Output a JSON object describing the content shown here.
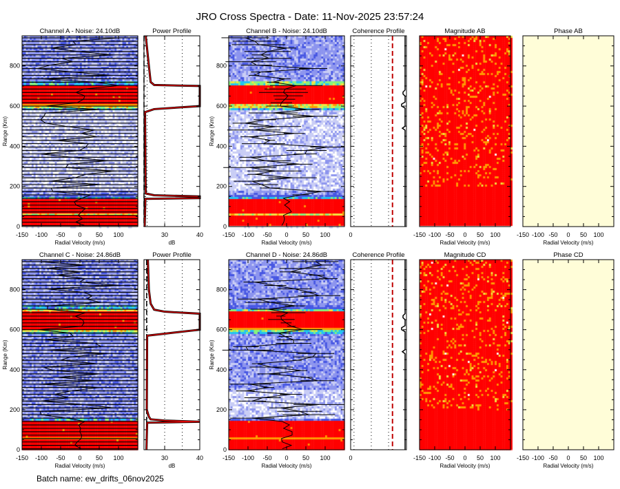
{
  "title": "JRO Cross Spectra - Date: 11-Nov-2025 23:57:24",
  "batch_name": "Batch name: ew_drifts_06nov2025",
  "colors": {
    "profile_line": "#e00000",
    "threshold_line": "#c00000",
    "phase_fill": "#fffdd8",
    "saturated": "#ff0000"
  },
  "colormap": [
    "#ffffff",
    "#c9cdf5",
    "#8c94ee",
    "#4656e2",
    "#22c4f2",
    "#86f27c",
    "#f2e640",
    "#ff9a00",
    "#ff0000"
  ],
  "chart_data": [
    {
      "id": "specA",
      "type": "heatmap",
      "title": "Channel A - Noise: 24.10dB",
      "xlabel": "Radial Velocity (m/s)",
      "ylabel": "Range (Km)",
      "xlim": [
        -150,
        150
      ],
      "ylim": [
        0,
        950
      ],
      "xticks": [
        "-150",
        "-100",
        "-50",
        "0",
        "50",
        "100"
      ],
      "yticks": [
        "0",
        "200",
        "400",
        "600",
        "800"
      ],
      "bands": [
        [
          0,
          55,
          8
        ],
        [
          55,
          65,
          6
        ],
        [
          65,
          140,
          8
        ],
        [
          140,
          148,
          4
        ],
        [
          148,
          158,
          3
        ],
        [
          158,
          175,
          2
        ],
        [
          175,
          580,
          1
        ],
        [
          580,
          592,
          4
        ],
        [
          592,
          600,
          6
        ],
        [
          600,
          610,
          7
        ],
        [
          610,
          700,
          8
        ],
        [
          700,
          708,
          6
        ],
        [
          708,
          725,
          4
        ],
        [
          725,
          950,
          2
        ]
      ]
    },
    {
      "id": "powA",
      "type": "line",
      "title": "Power Profile",
      "xlabel": "dB",
      "xlim": [
        24.1,
        40
      ],
      "ylim": [
        0,
        950
      ],
      "xticks": [
        "30",
        "40"
      ],
      "noise_db": 24.1,
      "profile": [
        [
          0,
          24.3
        ],
        [
          138,
          24.5
        ],
        [
          142,
          40
        ],
        [
          150,
          40
        ],
        [
          156,
          27
        ],
        [
          165,
          24.6
        ],
        [
          570,
          24.4
        ],
        [
          585,
          27
        ],
        [
          600,
          40
        ],
        [
          700,
          40
        ],
        [
          705,
          27
        ],
        [
          720,
          26
        ],
        [
          800,
          25.5
        ],
        [
          950,
          24.6
        ]
      ]
    },
    {
      "id": "specB",
      "type": "heatmap",
      "title": "Channel B - Noise: 24.10dB",
      "xlabel": "Radial Velocity (m/s)",
      "ylabel": "Range (Km)",
      "xlim": [
        -150,
        150
      ],
      "ylim": [
        0,
        950
      ],
      "xticks": [
        "-150",
        "-100",
        "-50",
        "0",
        "50",
        "100"
      ],
      "yticks": [
        "0",
        "200",
        "400",
        "600",
        "800"
      ],
      "bands": [
        [
          0,
          50,
          8
        ],
        [
          50,
          62,
          6
        ],
        [
          62,
          140,
          8
        ],
        [
          140,
          150,
          4
        ],
        [
          150,
          160,
          3
        ],
        [
          160,
          180,
          2
        ],
        [
          180,
          580,
          1
        ],
        [
          580,
          594,
          4
        ],
        [
          594,
          606,
          6
        ],
        [
          606,
          700,
          8
        ],
        [
          700,
          720,
          5
        ],
        [
          720,
          950,
          2
        ]
      ]
    },
    {
      "id": "cohAB",
      "type": "line",
      "title": "Coherence Profile",
      "xticks": [
        "0"
      ],
      "ylim": [
        0,
        950
      ]
    },
    {
      "id": "magAB",
      "type": "heatmap",
      "title": "Magnitude AB",
      "xlabel": "Radial Velocity (m/s)",
      "xlim": [
        -150,
        150
      ],
      "ylim": [
        0,
        950
      ],
      "xticks": [
        "-150",
        "-100",
        "-50",
        "0",
        "50",
        "100"
      ],
      "bands": [
        [
          0,
          950,
          8
        ]
      ]
    },
    {
      "id": "phAB",
      "type": "heatmap",
      "title": "Phase AB",
      "xlabel": "Radial Velocity (m/s)",
      "xlim": [
        -150,
        150
      ],
      "ylim": [
        0,
        950
      ],
      "xticks": [
        "-150",
        "-100",
        "-50",
        "0",
        "50",
        "100"
      ],
      "bands": []
    },
    {
      "id": "specC",
      "type": "heatmap",
      "title": "Channel C - Noise: 24.86dB",
      "xlabel": "Radial Velocity (m/s)",
      "ylabel": "Range (Km)",
      "xlim": [
        -150,
        150
      ],
      "ylim": [
        0,
        950
      ],
      "xticks": [
        "-150",
        "-100",
        "-50",
        "0",
        "50",
        "100"
      ],
      "yticks": [
        "0",
        "200",
        "400",
        "600",
        "800"
      ],
      "bands": [
        [
          0,
          55,
          8
        ],
        [
          55,
          65,
          7
        ],
        [
          65,
          140,
          8
        ],
        [
          140,
          150,
          4
        ],
        [
          150,
          580,
          2
        ],
        [
          580,
          592,
          4
        ],
        [
          592,
          600,
          6
        ],
        [
          600,
          690,
          8
        ],
        [
          690,
          700,
          6
        ],
        [
          700,
          720,
          4
        ],
        [
          720,
          950,
          2
        ]
      ]
    },
    {
      "id": "powC",
      "type": "line",
      "title": "Power Profile",
      "xlabel": "dB",
      "xlim": [
        24.1,
        40
      ],
      "ylim": [
        0,
        950
      ],
      "xticks": [
        "30",
        "40"
      ],
      "noise_db": 24.86,
      "profile": [
        [
          0,
          24.8
        ],
        [
          135,
          25
        ],
        [
          140,
          40
        ],
        [
          146,
          30
        ],
        [
          152,
          26
        ],
        [
          165,
          25.5
        ],
        [
          200,
          24.9
        ],
        [
          570,
          25
        ],
        [
          580,
          30
        ],
        [
          600,
          40
        ],
        [
          680,
          40
        ],
        [
          690,
          30
        ],
        [
          700,
          27
        ],
        [
          730,
          26
        ],
        [
          800,
          25.5
        ],
        [
          950,
          25.2
        ]
      ]
    },
    {
      "id": "specD",
      "type": "heatmap",
      "title": "Channel D - Noise: 24.86dB",
      "xlabel": "Radial Velocity (m/s)",
      "ylabel": "Range (Km)",
      "xlim": [
        -150,
        150
      ],
      "ylim": [
        0,
        950
      ],
      "xticks": [
        "-150",
        "-100",
        "-50",
        "0",
        "50",
        "100"
      ],
      "yticks": [
        "0",
        "200",
        "400",
        "600",
        "800"
      ],
      "bands": [
        [
          0,
          55,
          8
        ],
        [
          55,
          62,
          7
        ],
        [
          62,
          140,
          8
        ],
        [
          140,
          155,
          3
        ],
        [
          155,
          300,
          1
        ],
        [
          300,
          580,
          2
        ],
        [
          580,
          590,
          4
        ],
        [
          590,
          600,
          5
        ],
        [
          600,
          612,
          7
        ],
        [
          612,
          690,
          8
        ],
        [
          690,
          705,
          5
        ],
        [
          705,
          720,
          3
        ],
        [
          720,
          950,
          2
        ]
      ]
    },
    {
      "id": "cohCD",
      "type": "line",
      "title": "Coherence Profile",
      "xticks": [
        "0"
      ],
      "ylim": [
        0,
        950
      ]
    },
    {
      "id": "magCD",
      "type": "heatmap",
      "title": "Magnitude CD",
      "xlabel": "Radial Velocity (m/s)",
      "xlim": [
        -150,
        150
      ],
      "ylim": [
        0,
        950
      ],
      "xticks": [
        "-150",
        "-100",
        "-50",
        "0",
        "50",
        "100"
      ],
      "bands": [
        [
          0,
          950,
          8
        ]
      ]
    },
    {
      "id": "phCD",
      "type": "heatmap",
      "title": "Phase CD",
      "xlabel": "Radial Velocity (m/s)",
      "xlim": [
        -150,
        150
      ],
      "ylim": [
        0,
        950
      ],
      "xticks": [
        "-150",
        "-100",
        "-50",
        "0",
        "50",
        "100"
      ],
      "bands": []
    }
  ]
}
